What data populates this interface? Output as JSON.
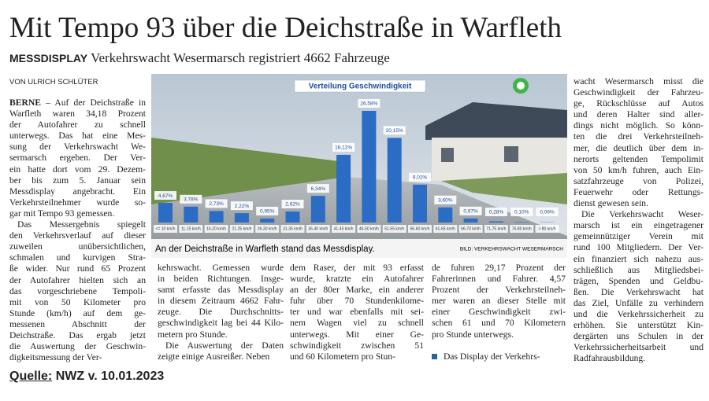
{
  "header": {
    "title": "Mit Tempo 93 über die Deichstraße in Warfleth",
    "kicker": "MESSDISPLAY",
    "subtitle": "Verkehrswacht Wesermarsch registriert 4662 Fahrzeuge",
    "byline": "VON ULRICH SCHLÜTER"
  },
  "article": {
    "dateline": "BERNE",
    "columns": [
      [
        [
          "– Auf der Deichstraße in",
          "Warfleth waren 34,18 Prozent",
          "der Autofahrer zu schnell",
          "unterwegs. Das hat eine Mes-",
          "sung der Verkehrswacht We-",
          "sermarsch ergeben. Der Ver-",
          "ein hatte dort vom 29. Dezem-",
          "ber bis zum 5. Januar sein",
          "Messdisplay angebracht. Ein",
          "Verkehrsteilnehmer wurde so-",
          "gar mit Tempo 93 gemessen."
        ],
        [
          "Das Messergebnis spiegelt",
          "den Verkehrsverlauf auf dieser",
          "zuweilen unübersichtlichen,",
          "schmalen und kurvigen Stra-",
          "ße wider. Nur rund 65 Prozent",
          "der Autofahrer hielten sich an",
          "das vorgeschriebene Tempoli-",
          "mit von 50 Kilometer pro",
          "Stunde (km/h) auf dem ge-",
          "messenen Abschnitt der",
          "Deichstraße. Das ergab jetzt",
          "die Auswertung der Geschwin-",
          "digkeitsmessung der Ver-"
        ]
      ],
      [
        [
          "kehrswacht. Gemessen wurde",
          "in beiden Richtungen. Insge-",
          "samt erfasste das Messdisplay",
          "in diesem Zeitraum 4662 Fahr-",
          "zeuge. Die Durchschnitts-",
          "geschwindigkeit lag bei 44 Kilo-",
          "metern pro Stunde."
        ],
        [
          "Die Auswertung der Daten",
          "zeigte einige Ausreißer. Neben"
        ]
      ],
      [
        [
          "dem Raser, der mit 93 erfasst",
          "wurde, kratzte ein Autofahrer",
          "an der 80er Marke, ein anderer",
          "fuhr über 70 Stundenkilome-",
          "ter und war ebenfalls mit sei-",
          "nem Wagen viel zu schnell",
          "unterwegs. Mit einer Ge-",
          "schwindigkeit zwischen 51",
          "und 60 Kilometern pro Stun-"
        ]
      ],
      [
        [
          "de fuhren 29,17 Prozent der",
          "Fahrerinnen und Fahrer. 4,57",
          "Prozent der Verkehrsteilneh-",
          "mer waren an dieser Stelle mit",
          "einer Geschwindigkeit zwi-",
          "schen 61 und 70 Kilometern",
          "pro Stunde unterwegs."
        ]
      ],
      [
        [
          "wacht Wesermarsch misst die",
          "Geschwindigkeit der Fahrzeu-",
          "ge, Rückschlüsse auf Autos",
          "und deren Halter sind aller-",
          "dings nicht möglich. So könn-",
          "ten die drei Verkehrsteilneh-",
          "mer, die deutlich über dem in-",
          "nerorts geltenden Tempolimit",
          "von 50 km/h fuhren, auch Ein-",
          "satzfahrzeuge von Polizei,",
          "Feuerwehr oder Rettungs-",
          "dienst gewesen sein."
        ],
        [
          "Die Verkehrswacht Weser-",
          "marsch ist ein eingetragener",
          "gemeinnütziger Verein mit",
          "rund 100 Mitgliedern. Der Ver-",
          "ein finanziert sich nahezu aus-",
          "schließlich aus Mitgliedsbei-",
          "trägen, Spenden und Geldbu-",
          "ßen. Die Verkehrswacht hat",
          "das Ziel, Unfälle zu verhindern",
          "und die Verkehrssicherheit zu",
          "erhöhen. Sie unterstützt Kin-",
          "dergärten uns Schulen in der",
          "Verkehrssicherheitsarbeit und",
          "Radfahrausbildung."
        ]
      ]
    ],
    "teaser": "Das Display der Verkehrs-"
  },
  "photo": {
    "caption": "An der Deichstraße in Warfleth stand das Messdisplay.",
    "credit": "BILD: VERKEHRSWACHT WESERMARSCH"
  },
  "chart_data": {
    "type": "bar",
    "title": "Verteilung Geschwindigkeit",
    "categories": [
      "<= 10 km/h",
      "11-15 km/h",
      "16-20 km/h",
      "21-25 km/h",
      "26-30 km/h",
      "31-35 km/h",
      "36-40 km/h",
      "41-45 km/h",
      "46-50 km/h",
      "51-55 km/h",
      "56-60 km/h",
      "61-65 km/h",
      "66-70 km/h",
      "71-75 km/h",
      "76-80 km/h",
      "> 80 km/h"
    ],
    "values": [
      4.67,
      3.78,
      2.73,
      2.22,
      0.95,
      2.62,
      6.34,
      16.12,
      26.58,
      20.15,
      9.02,
      3.6,
      0.97,
      0.28,
      0.1,
      0.06
    ],
    "value_labels": [
      "4,67%",
      "3,78%",
      "2,73%",
      "2,22%",
      "0,95%",
      "2,62%",
      "6,34%",
      "16,12%",
      "26,58%",
      "20,15%",
      "9,02%",
      "3,60%",
      "0,97%",
      "0,28%",
      "0,10%",
      "0,06%"
    ],
    "color": "#2b6cc4"
  },
  "source": {
    "label": "Quelle:",
    "text": "NWZ v. 10.01.2023"
  }
}
